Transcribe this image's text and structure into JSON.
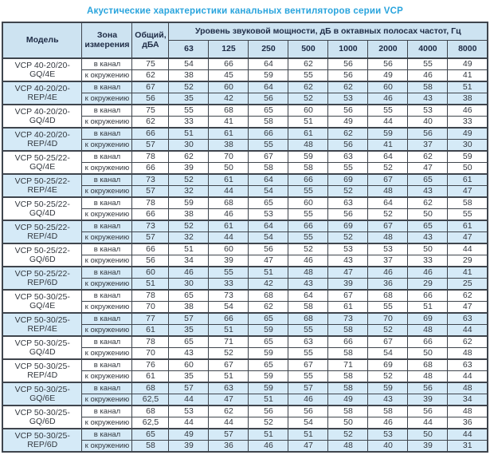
{
  "title": "Акустические характеристики канальных вентиляторов  серии VCP",
  "accent_colors": {
    "title_blue": "#29a4dd",
    "header_bg": "#cde3f1",
    "shaded_row_bg": "#d5eaf7",
    "border_dark": "#3f454d"
  },
  "table": {
    "headers": {
      "model": "Модель",
      "zone": "Зона\nизмерения",
      "total": "Общий,\nдБА",
      "spl": "Уровень звуковой мощности, дБ в октавных полосах частот, Гц",
      "frequencies": [
        "63",
        "125",
        "250",
        "500",
        "1000",
        "2000",
        "4000",
        "8000"
      ]
    },
    "groups": [
      {
        "model": "VCP 40-20/20-GQ/4E",
        "shaded": false,
        "rows": [
          {
            "zone": "в канал",
            "total": "75",
            "values": [
              "54",
              "66",
              "64",
              "62",
              "56",
              "56",
              "55",
              "49"
            ]
          },
          {
            "zone": "к окружению",
            "total": "62",
            "values": [
              "38",
              "45",
              "59",
              "55",
              "56",
              "49",
              "46",
              "41"
            ]
          }
        ]
      },
      {
        "model": "VCP 40-20/20-REP/4E",
        "shaded": true,
        "rows": [
          {
            "zone": "в канал",
            "total": "67",
            "values": [
              "52",
              "60",
              "64",
              "62",
              "62",
              "60",
              "58",
              "51"
            ]
          },
          {
            "zone": "к окружению",
            "total": "56",
            "values": [
              "35",
              "42",
              "56",
              "52",
              "53",
              "46",
              "43",
              "38"
            ]
          }
        ]
      },
      {
        "model": "VCP 40-20/20-GQ/4D",
        "shaded": false,
        "rows": [
          {
            "zone": "в канал",
            "total": "75",
            "values": [
              "55",
              "68",
              "65",
              "60",
              "56",
              "55",
              "53",
              "46"
            ]
          },
          {
            "zone": "к окружению",
            "total": "62",
            "values": [
              "33",
              "41",
              "58",
              "51",
              "49",
              "44",
              "40",
              "33"
            ]
          }
        ]
      },
      {
        "model": "VCP 40-20/20-REP/4D",
        "shaded": true,
        "rows": [
          {
            "zone": "в канал",
            "total": "66",
            "values": [
              "51",
              "61",
              "66",
              "61",
              "62",
              "59",
              "56",
              "49"
            ]
          },
          {
            "zone": "к окружению",
            "total": "57",
            "values": [
              "30",
              "38",
              "55",
              "48",
              "56",
              "41",
              "37",
              "30"
            ]
          }
        ]
      },
      {
        "model": "VCP 50-25/22-GQ/4E",
        "shaded": false,
        "rows": [
          {
            "zone": "в канал",
            "total": "78",
            "values": [
              "62",
              "70",
              "67",
              "59",
              "63",
              "64",
              "62",
              "59"
            ]
          },
          {
            "zone": "к окружению",
            "total": "66",
            "values": [
              "39",
              "50",
              "58",
              "58",
              "55",
              "52",
              "47",
              "50"
            ]
          }
        ]
      },
      {
        "model": "VCP 50-25/22-REP/4E",
        "shaded": true,
        "rows": [
          {
            "zone": "в канал",
            "total": "73",
            "values": [
              "52",
              "61",
              "64",
              "66",
              "69",
              "67",
              "65",
              "61"
            ]
          },
          {
            "zone": "к окружению",
            "total": "57",
            "values": [
              "32",
              "44",
              "54",
              "55",
              "52",
              "48",
              "43",
              "47"
            ]
          }
        ]
      },
      {
        "model": "VCP 50-25/22-GQ/4D",
        "shaded": false,
        "rows": [
          {
            "zone": "в канал",
            "total": "78",
            "values": [
              "59",
              "68",
              "65",
              "60",
              "63",
              "64",
              "62",
              "58"
            ]
          },
          {
            "zone": "к окружению",
            "total": "66",
            "values": [
              "38",
              "46",
              "53",
              "55",
              "56",
              "52",
              "50",
              "55"
            ]
          }
        ]
      },
      {
        "model": "VCP 50-25/22-REP/4D",
        "shaded": true,
        "rows": [
          {
            "zone": "в канал",
            "total": "73",
            "values": [
              "52",
              "61",
              "64",
              "66",
              "69",
              "67",
              "65",
              "61"
            ]
          },
          {
            "zone": "к окружению",
            "total": "57",
            "values": [
              "32",
              "44",
              "54",
              "55",
              "52",
              "48",
              "43",
              "47"
            ]
          }
        ]
      },
      {
        "model": "VCP 50-25/22-GQ/6D",
        "shaded": false,
        "rows": [
          {
            "zone": "в канал",
            "total": "66",
            "values": [
              "51",
              "60",
              "56",
              "52",
              "53",
              "53",
              "50",
              "44"
            ]
          },
          {
            "zone": "к окружению",
            "total": "56",
            "values": [
              "34",
              "39",
              "47",
              "46",
              "43",
              "37",
              "33",
              "29"
            ]
          }
        ]
      },
      {
        "model": "VCP 50-25/22-REP/6D",
        "shaded": true,
        "rows": [
          {
            "zone": "в канал",
            "total": "60",
            "values": [
              "46",
              "55",
              "51",
              "48",
              "47",
              "46",
              "46",
              "41"
            ]
          },
          {
            "zone": "к окружению",
            "total": "51",
            "values": [
              "30",
              "33",
              "42",
              "43",
              "39",
              "36",
              "29",
              "25"
            ]
          }
        ]
      },
      {
        "model": "VCP 50-30/25-GQ/4E",
        "shaded": false,
        "rows": [
          {
            "zone": "в канал",
            "total": "78",
            "values": [
              "65",
              "73",
              "68",
              "64",
              "67",
              "68",
              "66",
              "62"
            ]
          },
          {
            "zone": "к окружению",
            "total": "70",
            "values": [
              "38",
              "54",
              "62",
              "58",
              "61",
              "55",
              "51",
              "47"
            ]
          }
        ]
      },
      {
        "model": "VCP 50-30/25-REP/4E",
        "shaded": true,
        "rows": [
          {
            "zone": "в канал",
            "total": "77",
            "values": [
              "57",
              "66",
              "65",
              "68",
              "73",
              "70",
              "69",
              "63"
            ]
          },
          {
            "zone": "к окружению",
            "total": "61",
            "values": [
              "35",
              "51",
              "59",
              "55",
              "58",
              "52",
              "48",
              "44"
            ]
          }
        ]
      },
      {
        "model": "VCP 50-30/25-GQ/4D",
        "shaded": false,
        "rows": [
          {
            "zone": "в канал",
            "total": "78",
            "values": [
              "65",
              "71",
              "65",
              "63",
              "66",
              "67",
              "66",
              "62"
            ]
          },
          {
            "zone": "к окружению",
            "total": "70",
            "values": [
              "43",
              "52",
              "59",
              "55",
              "58",
              "54",
              "50",
              "48"
            ]
          }
        ]
      },
      {
        "model": "VCP 50-30/25-REP/4D",
        "shaded": false,
        "rows": [
          {
            "zone": "в канал",
            "total": "76",
            "values": [
              "60",
              "67",
              "65",
              "67",
              "71",
              "69",
              "68",
              "63"
            ]
          },
          {
            "zone": "к окружению",
            "total": "61",
            "values": [
              "35",
              "51",
              "59",
              "55",
              "58",
              "52",
              "48",
              "44"
            ]
          }
        ]
      },
      {
        "model": "VCP 50-30/25-GQ/6E",
        "shaded": true,
        "rows": [
          {
            "zone": "в канал",
            "total": "68",
            "values": [
              "57",
              "63",
              "59",
              "57",
              "58",
              "59",
              "56",
              "48"
            ]
          },
          {
            "zone": "к окружению",
            "total": "62,5",
            "values": [
              "44",
              "47",
              "51",
              "46",
              "49",
              "43",
              "39",
              "34"
            ]
          }
        ]
      },
      {
        "model": "VCP 50-30/25-GQ/6D",
        "shaded": false,
        "rows": [
          {
            "zone": "в канал",
            "total": "68",
            "values": [
              "53",
              "62",
              "56",
              "56",
              "58",
              "58",
              "56",
              "48"
            ]
          },
          {
            "zone": "к окружению",
            "total": "62,5",
            "values": [
              "44",
              "44",
              "52",
              "54",
              "50",
              "46",
              "44",
              "36"
            ]
          }
        ]
      },
      {
        "model": "VCP 50-30/25-REP/6D",
        "shaded": true,
        "rows": [
          {
            "zone": "в канал",
            "total": "65",
            "values": [
              "49",
              "57",
              "51",
              "51",
              "52",
              "53",
              "50",
              "44"
            ]
          },
          {
            "zone": "к окружению",
            "total": "58",
            "values": [
              "39",
              "36",
              "46",
              "47",
              "48",
              "40",
              "39",
              "31"
            ]
          }
        ]
      }
    ]
  }
}
